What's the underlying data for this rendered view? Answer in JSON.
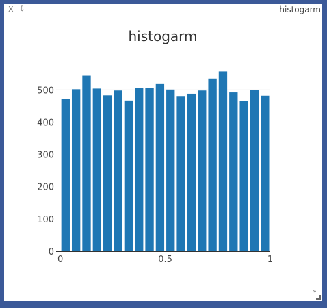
{
  "window": {
    "title": "histogarm",
    "close_label": "X",
    "pin_label": "⇩"
  },
  "colors": {
    "bar": "#1f77b4",
    "axis": "#333333",
    "grid": "#eeeeee"
  },
  "chart_data": {
    "type": "bar",
    "title": "histogarm",
    "xlabel": "",
    "ylabel": "",
    "x": [
      0,
      0.05,
      0.1,
      0.15,
      0.2,
      0.25,
      0.3,
      0.35,
      0.4,
      0.45,
      0.5,
      0.55,
      0.6,
      0.65,
      0.7,
      0.75,
      0.8,
      0.85,
      0.9,
      0.95
    ],
    "bin_width": 0.05,
    "values": [
      471,
      502,
      544,
      504,
      483,
      498,
      467,
      505,
      506,
      520,
      501,
      481,
      488,
      498,
      535,
      557,
      492,
      465,
      499,
      482
    ],
    "xlim": [
      -0.02,
      1.0
    ],
    "ylim": [
      0,
      560
    ],
    "xticks": [
      0,
      0.5,
      1
    ],
    "xtick_labels": [
      "0",
      "0.5",
      "1"
    ],
    "yticks": [
      0,
      100,
      200,
      300,
      400,
      500
    ],
    "ytick_labels": [
      "0",
      "100",
      "200",
      "300",
      "400",
      "500"
    ],
    "grid": false
  }
}
